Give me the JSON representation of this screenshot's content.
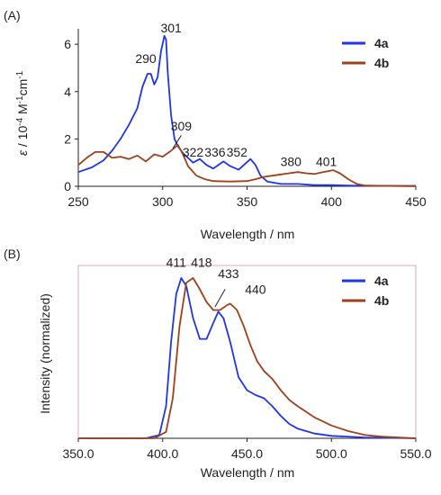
{
  "chart_data": [
    {
      "type": "line",
      "panel_label": "(A)",
      "xlabel": "Wavelength / nm",
      "ylabel_parts": [
        "ε",
        " / 10",
        "-4",
        " M",
        "-1",
        "cm",
        "-1"
      ],
      "xlim": [
        250,
        450
      ],
      "ylim": [
        0,
        6.5
      ],
      "x_ticks": [
        250,
        300,
        350,
        400,
        450
      ],
      "y_ticks": [
        0,
        2,
        4,
        6
      ],
      "legend_position": "top-right",
      "series": [
        {
          "name": "4a",
          "color": "#1f35e6",
          "points": [
            [
              250,
              0.6
            ],
            [
              258,
              0.8
            ],
            [
              265,
              1.1
            ],
            [
              270,
              1.5
            ],
            [
              275,
              2.0
            ],
            [
              280,
              2.6
            ],
            [
              285,
              3.3
            ],
            [
              288,
              4.2
            ],
            [
              291,
              4.75
            ],
            [
              293,
              4.75
            ],
            [
              295,
              4.3
            ],
            [
              297,
              4.6
            ],
            [
              299,
              5.7
            ],
            [
              301,
              6.35
            ],
            [
              302,
              6.2
            ],
            [
              303,
              4.8
            ],
            [
              305,
              3.0
            ],
            [
              307,
              2.0
            ],
            [
              309,
              1.7
            ],
            [
              312,
              1.4
            ],
            [
              315,
              1.2
            ],
            [
              318,
              1.0
            ],
            [
              322,
              1.15
            ],
            [
              326,
              0.9
            ],
            [
              330,
              0.75
            ],
            [
              336,
              1.05
            ],
            [
              340,
              0.85
            ],
            [
              345,
              0.7
            ],
            [
              352,
              1.15
            ],
            [
              355,
              0.9
            ],
            [
              358,
              0.45
            ],
            [
              362,
              0.2
            ],
            [
              370,
              0.1
            ],
            [
              380,
              0.1
            ],
            [
              390,
              0.05
            ],
            [
              400,
              0.05
            ],
            [
              410,
              0.03
            ],
            [
              420,
              0.02
            ],
            [
              450,
              0.02
            ]
          ]
        },
        {
          "name": "4b",
          "color": "#a0411a",
          "points": [
            [
              250,
              0.9
            ],
            [
              255,
              1.2
            ],
            [
              260,
              1.45
            ],
            [
              265,
              1.45
            ],
            [
              270,
              1.2
            ],
            [
              275,
              1.25
            ],
            [
              280,
              1.15
            ],
            [
              285,
              1.3
            ],
            [
              290,
              1.05
            ],
            [
              295,
              1.35
            ],
            [
              300,
              1.25
            ],
            [
              305,
              1.5
            ],
            [
              309,
              1.75
            ],
            [
              312,
              1.35
            ],
            [
              315,
              0.85
            ],
            [
              320,
              0.45
            ],
            [
              325,
              0.3
            ],
            [
              330,
              0.22
            ],
            [
              340,
              0.2
            ],
            [
              350,
              0.22
            ],
            [
              355,
              0.3
            ],
            [
              360,
              0.4
            ],
            [
              365,
              0.45
            ],
            [
              370,
              0.5
            ],
            [
              375,
              0.55
            ],
            [
              380,
              0.6
            ],
            [
              385,
              0.55
            ],
            [
              390,
              0.52
            ],
            [
              395,
              0.6
            ],
            [
              401,
              0.68
            ],
            [
              405,
              0.55
            ],
            [
              410,
              0.3
            ],
            [
              415,
              0.1
            ],
            [
              420,
              0.03
            ],
            [
              450,
              0.0
            ]
          ]
        }
      ],
      "annotations": [
        {
          "text": "290",
          "x": 290,
          "y": 5.2
        },
        {
          "text": "301",
          "x": 305,
          "y": 6.5
        },
        {
          "text": "309",
          "x": 311,
          "y": 2.35
        },
        {
          "text": "322",
          "x": 318,
          "y": 1.25
        },
        {
          "text": "336",
          "x": 331,
          "y": 1.25
        },
        {
          "text": "352",
          "x": 344,
          "y": 1.25
        },
        {
          "text": "380",
          "x": 376,
          "y": 0.85
        },
        {
          "text": "401",
          "x": 397,
          "y": 0.85
        }
      ]
    },
    {
      "type": "line",
      "panel_label": "(B)",
      "xlabel": "Wavelength / nm",
      "ylabel": "Intensity  (normalized)",
      "xlim": [
        350,
        550
      ],
      "ylim": [
        0,
        1.05
      ],
      "x_ticks": [
        "350.0",
        "400.0",
        "450.0",
        "500.0",
        "550.0"
      ],
      "legend_position": "top-right",
      "series": [
        {
          "name": "4a",
          "color": "#1f35e6",
          "points": [
            [
              350,
              0.0
            ],
            [
              390,
              0.0
            ],
            [
              398,
              0.02
            ],
            [
              402,
              0.2
            ],
            [
              405,
              0.6
            ],
            [
              408,
              0.9
            ],
            [
              411,
              1.0
            ],
            [
              414,
              0.95
            ],
            [
              418,
              0.75
            ],
            [
              422,
              0.62
            ],
            [
              426,
              0.62
            ],
            [
              430,
              0.72
            ],
            [
              433,
              0.79
            ],
            [
              436,
              0.75
            ],
            [
              440,
              0.6
            ],
            [
              445,
              0.38
            ],
            [
              450,
              0.3
            ],
            [
              455,
              0.27
            ],
            [
              460,
              0.25
            ],
            [
              465,
              0.2
            ],
            [
              470,
              0.14
            ],
            [
              475,
              0.09
            ],
            [
              480,
              0.06
            ],
            [
              490,
              0.03
            ],
            [
              500,
              0.015
            ],
            [
              520,
              0.005
            ],
            [
              550,
              0.0
            ]
          ]
        },
        {
          "name": "4b",
          "color": "#a0411a",
          "points": [
            [
              350,
              0.0
            ],
            [
              395,
              0.0
            ],
            [
              402,
              0.04
            ],
            [
              406,
              0.25
            ],
            [
              410,
              0.7
            ],
            [
              414,
              0.97
            ],
            [
              418,
              1.0
            ],
            [
              422,
              0.93
            ],
            [
              426,
              0.85
            ],
            [
              430,
              0.8
            ],
            [
              434,
              0.8
            ],
            [
              438,
              0.83
            ],
            [
              440,
              0.84
            ],
            [
              444,
              0.8
            ],
            [
              448,
              0.7
            ],
            [
              452,
              0.58
            ],
            [
              456,
              0.48
            ],
            [
              460,
              0.42
            ],
            [
              465,
              0.37
            ],
            [
              470,
              0.3
            ],
            [
              475,
              0.24
            ],
            [
              480,
              0.2
            ],
            [
              490,
              0.13
            ],
            [
              500,
              0.08
            ],
            [
              510,
              0.045
            ],
            [
              520,
              0.02
            ],
            [
              530,
              0.01
            ],
            [
              550,
              0.0
            ]
          ]
        }
      ],
      "annotations": [
        {
          "text": "411",
          "x": 408,
          "y": 1.07
        },
        {
          "text": "418",
          "x": 423,
          "y": 1.07
        },
        {
          "text": "433",
          "x": 439,
          "y": 1.0
        },
        {
          "text": "440",
          "x": 455,
          "y": 0.9
        }
      ]
    }
  ]
}
